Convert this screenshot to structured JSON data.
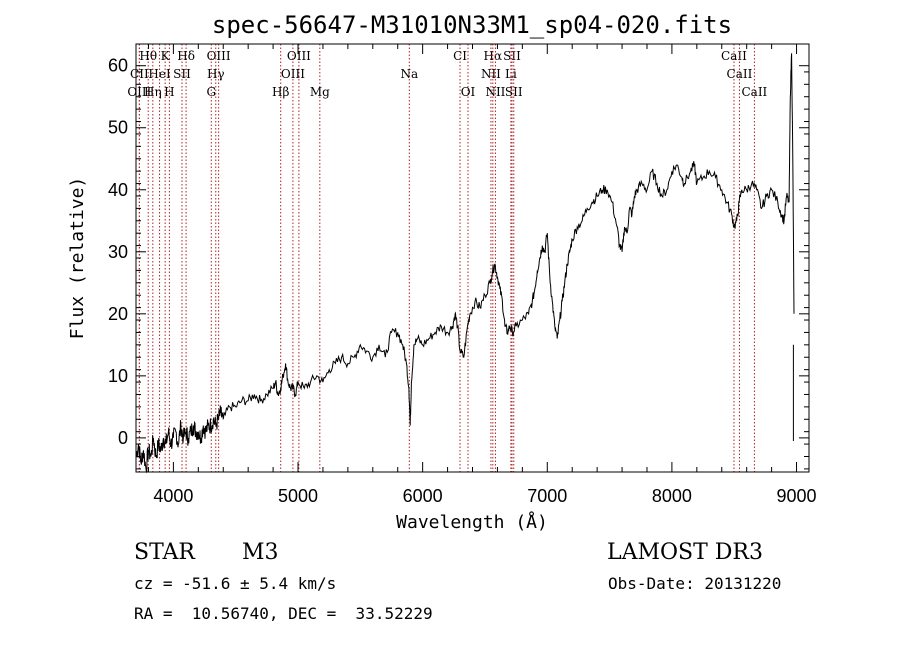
{
  "chart_data": {
    "type": "line",
    "title": "spec-56647-M31010N33M1_sp04-020.fits",
    "xlabel": "Wavelength (Å)",
    "ylabel": "Flux (relative)",
    "xlim": [
      3700,
      9100
    ],
    "ylim": [
      -5.5,
      63.5
    ],
    "xticks": [
      4000,
      5000,
      6000,
      7000,
      8000,
      9000
    ],
    "yticks": [
      0,
      10,
      20,
      30,
      40,
      50,
      60
    ],
    "grid": false,
    "series": [
      {
        "name": "spectrum",
        "x": [
          3700,
          3720,
          3740,
          3760,
          3780,
          3800,
          3820,
          3840,
          3860,
          3880,
          3900,
          3920,
          3940,
          3960,
          3980,
          4000,
          4020,
          4040,
          4060,
          4080,
          4100,
          4120,
          4140,
          4160,
          4180,
          4200,
          4220,
          4240,
          4260,
          4280,
          4300,
          4320,
          4340,
          4360,
          4380,
          4400,
          4450,
          4500,
          4550,
          4600,
          4650,
          4700,
          4750,
          4800,
          4820,
          4840,
          4860,
          4880,
          4900,
          4920,
          4940,
          4960,
          4980,
          5000,
          5050,
          5100,
          5150,
          5200,
          5250,
          5300,
          5350,
          5400,
          5450,
          5500,
          5550,
          5600,
          5650,
          5700,
          5750,
          5800,
          5840,
          5870,
          5890,
          5900,
          5910,
          5930,
          5960,
          6000,
          6050,
          6100,
          6150,
          6200,
          6240,
          6260,
          6280,
          6300,
          6330,
          6360,
          6380,
          6420,
          6460,
          6500,
          6540,
          6562,
          6580,
          6600,
          6620,
          6640,
          6660,
          6680,
          6700,
          6720,
          6750,
          6800,
          6850,
          6880,
          6900,
          6920,
          6940,
          6960,
          6980,
          7000,
          7020,
          7040,
          7060,
          7080,
          7100,
          7120,
          7140,
          7160,
          7180,
          7200,
          7240,
          7280,
          7320,
          7360,
          7400,
          7440,
          7480,
          7520,
          7560,
          7580,
          7600,
          7620,
          7640,
          7660,
          7680,
          7700,
          7720,
          7760,
          7800,
          7840,
          7880,
          7920,
          7960,
          8000,
          8040,
          8080,
          8100,
          8150,
          8180,
          8200,
          8250,
          8300,
          8350,
          8400,
          8440,
          8480,
          8500,
          8520,
          8540,
          8560,
          8600,
          8640,
          8680,
          8720,
          8760,
          8800,
          8850,
          8880,
          8900,
          8920,
          8940,
          8950,
          8960,
          8970,
          8980
        ],
        "y": [
          -3,
          -1,
          -4,
          -2,
          -5,
          -2,
          -3,
          0,
          -3,
          -1,
          -2,
          0,
          -1,
          1,
          -1,
          0,
          1,
          -1,
          2,
          0,
          1,
          0,
          1,
          2,
          1,
          1,
          0,
          2,
          1,
          2,
          2,
          3,
          2,
          3,
          4,
          3,
          5,
          5,
          6,
          6,
          7,
          6,
          7,
          8,
          9,
          7,
          8,
          10,
          12,
          9,
          8,
          8,
          7,
          9,
          8,
          9,
          10,
          9,
          11,
          12,
          13,
          12,
          13,
          15,
          14,
          13,
          15,
          13,
          17,
          17,
          15,
          12,
          8,
          2,
          9,
          15,
          16,
          15,
          16,
          17,
          18,
          17,
          18,
          20,
          18,
          14,
          13,
          18,
          20,
          22,
          21,
          23,
          25,
          27,
          28,
          26,
          24,
          22,
          18,
          17,
          18,
          17,
          18,
          19,
          20,
          22,
          24,
          27,
          29,
          31,
          30,
          33,
          26,
          22,
          18,
          16,
          19,
          22,
          25,
          28,
          30,
          32,
          34,
          35,
          37,
          38,
          39,
          40,
          40,
          38,
          34,
          31,
          30,
          34,
          33,
          37,
          36,
          39,
          40,
          41,
          40,
          43,
          41,
          39,
          40,
          43,
          44,
          42,
          41,
          43,
          44,
          41,
          42,
          43,
          42,
          40,
          38,
          36,
          34,
          35,
          38,
          40,
          40,
          41,
          40,
          37,
          39,
          40,
          38,
          36,
          35,
          39,
          38,
          55,
          62,
          45,
          20
        ]
      }
    ],
    "lines": [
      {
        "label": "Hθ",
        "x": 3798,
        "row": 0
      },
      {
        "label": "K",
        "x": 3934,
        "row": 0
      },
      {
        "label": "Hδ",
        "x": 4102,
        "row": 0
      },
      {
        "label": "OIII",
        "x": 4363,
        "row": 0
      },
      {
        "label": "OIII",
        "x": 5007,
        "row": 0
      },
      {
        "label": "CI",
        "x": 6300,
        "row": 0
      },
      {
        "label": "Hα",
        "x": 6563,
        "row": 0
      },
      {
        "label": "SII",
        "x": 6717,
        "row": 0
      },
      {
        "label": "CaII",
        "x": 8498,
        "row": 0
      },
      {
        "label": "CII",
        "x": 3727,
        "row": 1
      },
      {
        "label": "HeI",
        "x": 3889,
        "row": 1
      },
      {
        "label": "SII",
        "x": 4069,
        "row": 1
      },
      {
        "label": "Hγ",
        "x": 4340,
        "row": 1
      },
      {
        "label": "OIII",
        "x": 4959,
        "row": 1
      },
      {
        "label": "Na",
        "x": 5893,
        "row": 1
      },
      {
        "label": "NII",
        "x": 6548,
        "row": 1
      },
      {
        "label": "Li",
        "x": 6708,
        "row": 1
      },
      {
        "label": "CaII",
        "x": 8542,
        "row": 1
      },
      {
        "label": "OIII",
        "x": 3727,
        "row": 2
      },
      {
        "label": "Hη",
        "x": 3835,
        "row": 2
      },
      {
        "label": "H",
        "x": 3968,
        "row": 2
      },
      {
        "label": "G",
        "x": 4304,
        "row": 2
      },
      {
        "label": "Hβ",
        "x": 4861,
        "row": 2
      },
      {
        "label": "Mg",
        "x": 5175,
        "row": 2
      },
      {
        "label": "OI",
        "x": 6364,
        "row": 2
      },
      {
        "label": "NII",
        "x": 6584,
        "row": 2
      },
      {
        "label": "SII",
        "x": 6731,
        "row": 2
      },
      {
        "label": "CaII",
        "x": 8662,
        "row": 2
      }
    ]
  },
  "info": {
    "class": "STAR",
    "subclass": "M3",
    "survey": "LAMOST DR3",
    "cz": "cz = -51.6 ± 5.4 km/s",
    "obs_date": "Obs-Date: 20131220",
    "coords": "RA =  10.56740, DEC =  33.52229"
  },
  "colors": {
    "axes": "#000000",
    "spectrum": "#000000",
    "line_marker": "#b22222"
  }
}
